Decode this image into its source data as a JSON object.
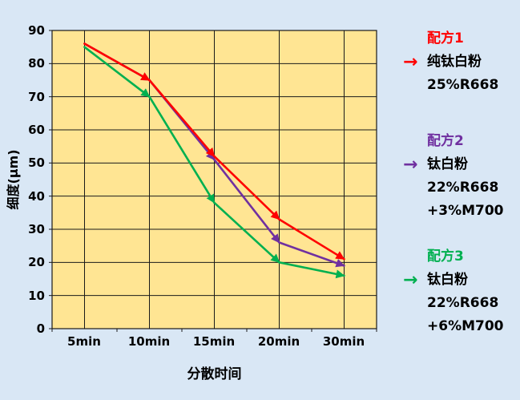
{
  "chart_data": {
    "type": "line",
    "categories": [
      "5min",
      "10min",
      "15min",
      "20min",
      "30min"
    ],
    "series": [
      {
        "name": "配方1 纯钛白粉 25%R668",
        "color": "#FF0000",
        "values": [
          86,
          75,
          52,
          33,
          21
        ]
      },
      {
        "name": "配方2 钛白粉 22%R668+3%M700",
        "color": "#7030A0",
        "values": [
          86,
          75,
          51,
          26,
          19
        ]
      },
      {
        "name": "配方3 钛白粉 22%R668+6%M700",
        "color": "#00B050",
        "values": [
          85,
          70,
          38,
          20,
          16
        ]
      }
    ],
    "xlabel": "分散时间",
    "ylabel": "细度(μm)",
    "ylim": [
      0,
      90
    ],
    "ytick_step": 10,
    "grid": true,
    "legend_position": "right",
    "marker": "arrow-segments"
  },
  "axes": {
    "y_title": "细度(μm)",
    "x_title": "分散时间",
    "y_ticks": [
      "90",
      "80",
      "70",
      "60",
      "50",
      "40",
      "30",
      "20",
      "10",
      "0"
    ],
    "x_ticks": [
      "5min",
      "10min",
      "15min",
      "20min",
      "30min"
    ]
  },
  "legend": {
    "arrow_glyph": "→",
    "items": [
      {
        "title": "配方1",
        "color": "#FF0000",
        "lines": [
          "纯钛白粉",
          "25%R668"
        ]
      },
      {
        "title": "配方2",
        "color": "#7030A0",
        "lines": [
          "钛白粉",
          "22%R668",
          "+3%M700"
        ]
      },
      {
        "title": "配方3",
        "color": "#00B050",
        "lines": [
          "钛白粉",
          "22%R668",
          "+6%M700"
        ]
      }
    ]
  },
  "colors": {
    "canvas_background": "#D9E7F5",
    "plot_background": "#FFE593",
    "grid_line": "#1A1A1A",
    "axis_text": "#000000"
  }
}
